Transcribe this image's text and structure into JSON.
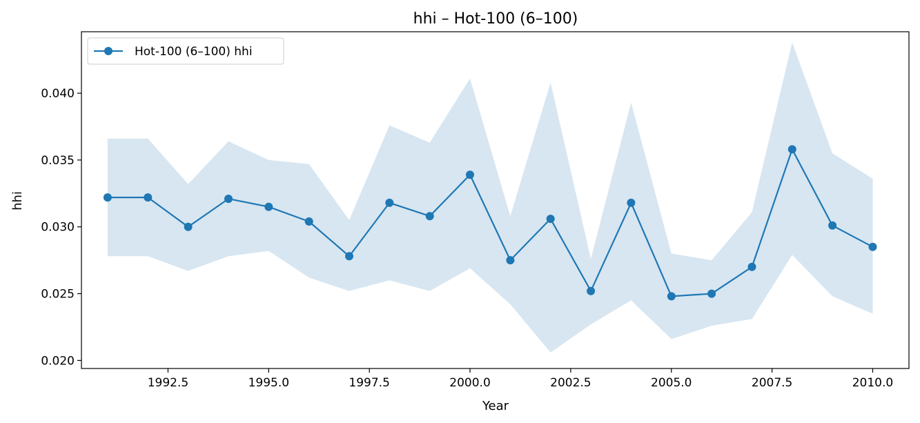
{
  "chart_data": {
    "type": "line",
    "title": "hhi – Hot-100 (6–100)",
    "xlabel": "Year",
    "ylabel": "hhi",
    "xlim": [
      1990.35,
      2010.9
    ],
    "ylim": [
      0.0194,
      0.0446
    ],
    "grid": false,
    "legend_position": "top-left",
    "x_ticks": [
      1992.5,
      1995.0,
      1997.5,
      2000.0,
      2002.5,
      2005.0,
      2007.5,
      2010.0
    ],
    "x_tick_labels": [
      "1992.5",
      "1995.0",
      "1997.5",
      "2000.0",
      "2002.5",
      "2005.0",
      "2007.5",
      "2010.0"
    ],
    "y_ticks": [
      0.02,
      0.025,
      0.03,
      0.035,
      0.04
    ],
    "y_tick_labels": [
      "0.020",
      "0.025",
      "0.030",
      "0.035",
      "0.040"
    ],
    "series": [
      {
        "name": "Hot-100 (6–100) hhi",
        "color": "#1f77b4",
        "band_color": "#1f77b4",
        "x": [
          1991,
          1992,
          1993,
          1994,
          1995,
          1996,
          1997,
          1998,
          1999,
          2000,
          2001,
          2002,
          2003,
          2004,
          2005,
          2006,
          2007,
          2008,
          2009,
          2010
        ],
        "y": [
          0.0322,
          0.0322,
          0.03,
          0.0321,
          0.0315,
          0.0304,
          0.0278,
          0.0318,
          0.0308,
          0.0339,
          0.0275,
          0.0306,
          0.0252,
          0.0318,
          0.0248,
          0.025,
          0.027,
          0.0358,
          0.0301,
          0.0285
        ],
        "lower": [
          0.0278,
          0.0278,
          0.0267,
          0.0278,
          0.0282,
          0.0262,
          0.0252,
          0.026,
          0.0252,
          0.0269,
          0.0242,
          0.0206,
          0.0227,
          0.0245,
          0.0216,
          0.0226,
          0.0231,
          0.0279,
          0.0248,
          0.0235
        ],
        "upper": [
          0.0366,
          0.0366,
          0.0332,
          0.0364,
          0.035,
          0.0347,
          0.0305,
          0.0376,
          0.0363,
          0.0411,
          0.0308,
          0.0408,
          0.0276,
          0.0393,
          0.028,
          0.0275,
          0.0311,
          0.0438,
          0.0355,
          0.0336
        ]
      }
    ]
  }
}
